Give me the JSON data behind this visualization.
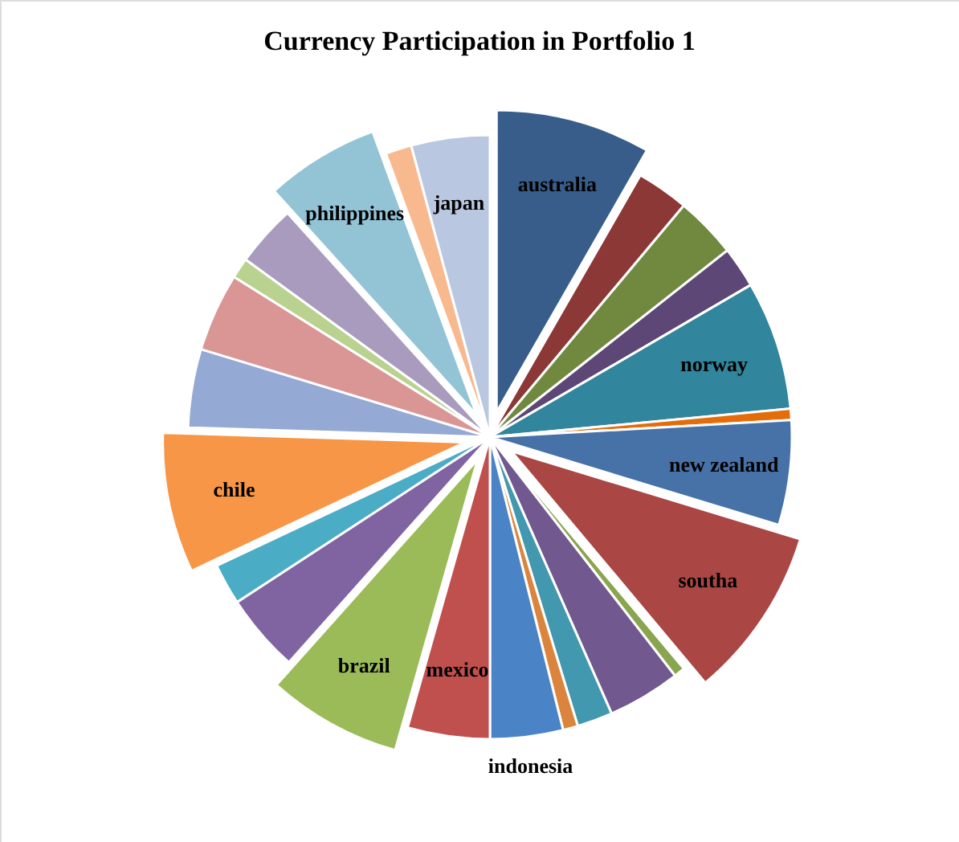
{
  "chart_data": {
    "type": "pie",
    "title": "Currency Participation in Portfolio 1",
    "categories": [
      "australia",
      null,
      null,
      null,
      "norway",
      null,
      "new zealand",
      "southa",
      null,
      null,
      null,
      null,
      "indonesia",
      "mexico",
      "brazil",
      null,
      null,
      "chile",
      null,
      null,
      null,
      null,
      "philippines",
      null,
      "japan"
    ],
    "values": [
      8.3,
      2.8,
      3.3,
      2.2,
      6.9,
      0.6,
      5.6,
      9.2,
      0.6,
      3.9,
      1.9,
      0.8,
      3.9,
      4.4,
      7.2,
      4.2,
      2.2,
      7.5,
      4.2,
      4.2,
      1.1,
      3.3,
      6.1,
      1.4,
      4.2
    ],
    "colors": [
      "#385d8a",
      "#8c3836",
      "#71893f",
      "#5c4776",
      "#31859c",
      "#e46c0a",
      "#4672a8",
      "#aa4643",
      "#89a54e",
      "#71588f",
      "#4198af",
      "#db843d",
      "#4a83c6",
      "#c0504d",
      "#9bbb59",
      "#8064a2",
      "#4bacc6",
      "#f79646",
      "#95a9d5",
      "#d99694",
      "#b9d28f",
      "#a99bbd",
      "#92c4d6",
      "#f9b98e",
      "#b9c7e0"
    ],
    "data_labels": false
  }
}
